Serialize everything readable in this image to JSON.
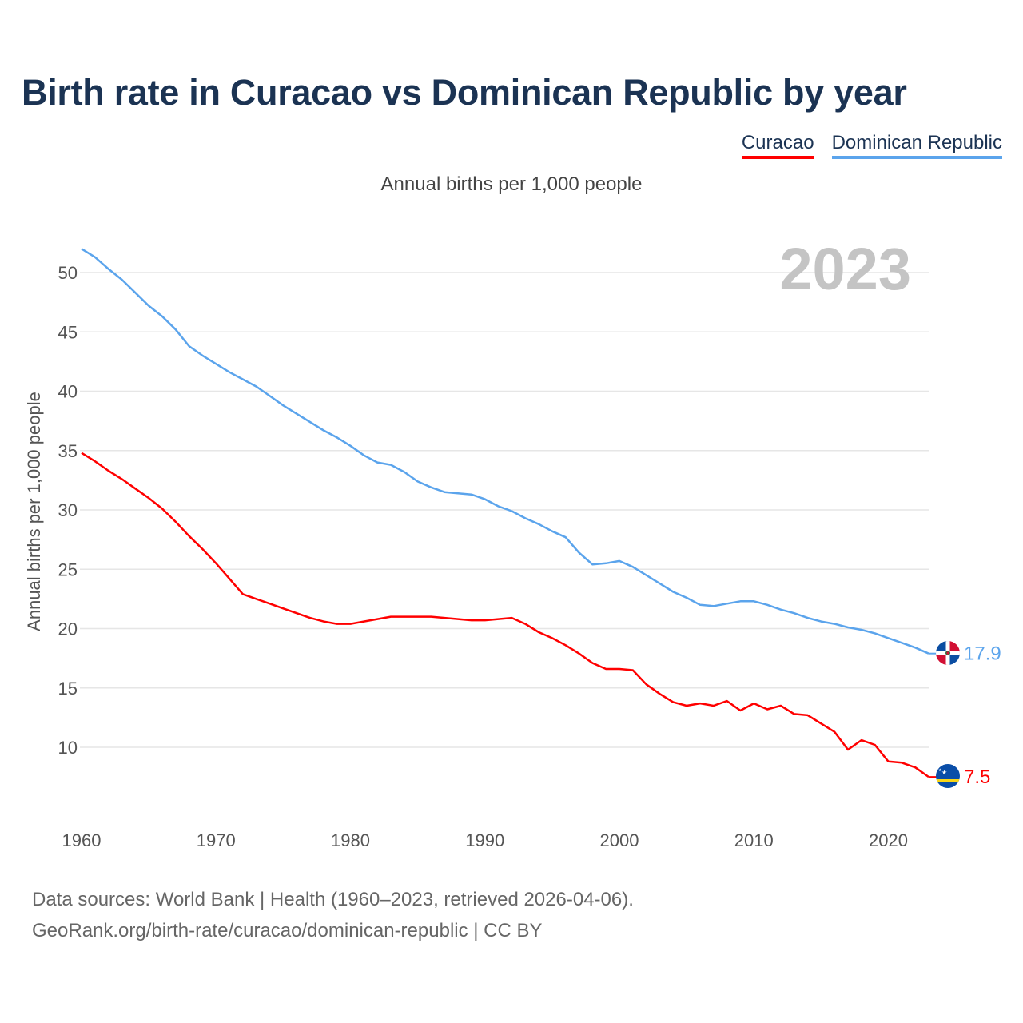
{
  "title": "Birth rate in Curacao vs Dominican Republic by year",
  "subtitle": "Annual births per 1,000 people",
  "year_label": "2023",
  "footer": {
    "line1": "Data sources: World Bank | Health (1960–2023, retrieved 2026-04-06).",
    "line2": "GeoRank.org/birth-rate/curacao/dominican-republic | CC BY"
  },
  "chart_data": {
    "type": "line",
    "title": "Birth rate in Curacao vs Dominican Republic by year",
    "xlabel": "",
    "ylabel": "Annual births per 1,000 people",
    "xlim": [
      1960,
      2023
    ],
    "ylim": [
      5,
      52
    ],
    "grid": true,
    "legend": "top-right",
    "xticks": [
      1960,
      1970,
      1980,
      1990,
      2000,
      2010,
      2020
    ],
    "yticks": [
      10,
      15,
      20,
      25,
      30,
      35,
      40,
      45,
      50
    ],
    "x": [
      1960,
      1961,
      1962,
      1963,
      1964,
      1965,
      1966,
      1967,
      1968,
      1969,
      1970,
      1971,
      1972,
      1973,
      1974,
      1975,
      1976,
      1977,
      1978,
      1979,
      1980,
      1981,
      1982,
      1983,
      1984,
      1985,
      1986,
      1987,
      1988,
      1989,
      1990,
      1991,
      1992,
      1993,
      1994,
      1995,
      1996,
      1997,
      1998,
      1999,
      2000,
      2001,
      2002,
      2003,
      2004,
      2005,
      2006,
      2007,
      2008,
      2009,
      2010,
      2011,
      2012,
      2013,
      2014,
      2015,
      2016,
      2017,
      2018,
      2019,
      2020,
      2021,
      2022,
      2023
    ],
    "series": [
      {
        "name": "Curacao",
        "color": "#ff0000",
        "end_label": "7.5",
        "values": [
          34.8,
          34.1,
          33.3,
          32.6,
          31.8,
          31.0,
          30.1,
          29.0,
          27.8,
          26.7,
          25.5,
          24.2,
          22.9,
          22.5,
          22.1,
          21.7,
          21.3,
          20.9,
          20.6,
          20.4,
          20.4,
          20.6,
          20.8,
          21.0,
          21.0,
          21.0,
          21.0,
          20.9,
          20.8,
          20.7,
          20.7,
          20.8,
          20.9,
          20.4,
          19.7,
          19.2,
          18.6,
          17.9,
          17.1,
          16.6,
          16.6,
          16.5,
          15.3,
          14.5,
          13.8,
          13.5,
          13.7,
          13.5,
          13.9,
          13.1,
          13.7,
          13.2,
          13.5,
          12.8,
          12.7,
          12.0,
          11.3,
          9.8,
          10.6,
          10.2,
          8.8,
          8.7,
          8.3,
          7.5
        ]
      },
      {
        "name": "Dominican Republic",
        "color": "#5ba4ec",
        "end_label": "17.9",
        "values": [
          52.0,
          51.3,
          50.3,
          49.4,
          48.3,
          47.2,
          46.3,
          45.2,
          43.8,
          43.0,
          42.3,
          41.6,
          41.0,
          40.4,
          39.6,
          38.8,
          38.1,
          37.4,
          36.7,
          36.1,
          35.4,
          34.6,
          34.0,
          33.8,
          33.2,
          32.4,
          31.9,
          31.5,
          31.4,
          31.3,
          30.9,
          30.3,
          29.9,
          29.3,
          28.8,
          28.2,
          27.7,
          26.4,
          25.4,
          25.5,
          25.7,
          25.2,
          24.5,
          23.8,
          23.1,
          22.6,
          22.0,
          21.9,
          22.1,
          22.3,
          22.3,
          22.0,
          21.6,
          21.3,
          20.9,
          20.6,
          20.4,
          20.1,
          19.9,
          19.6,
          19.2,
          18.8,
          18.4,
          17.9
        ]
      }
    ]
  }
}
